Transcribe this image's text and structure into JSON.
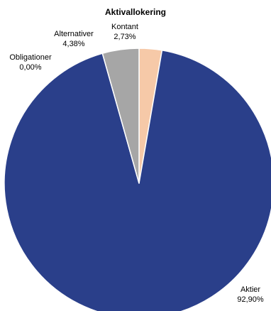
{
  "chart_data": {
    "type": "pie",
    "title": "Aktivallokering",
    "slices": [
      {
        "name": "Kontant",
        "value": 2.73,
        "label": "2,73%",
        "color": "#F6C9A8"
      },
      {
        "name": "Aktier",
        "value": 92.9,
        "label": "92,90%",
        "color": "#2A3F8A"
      },
      {
        "name": "Obligationer",
        "value": 0.0,
        "label": "0,00%",
        "color": "#7F7F7F"
      },
      {
        "name": "Alternativer",
        "value": 4.38,
        "label": "4,38%",
        "color": "#A6A6A6"
      }
    ],
    "start_angle": "12 o'clock",
    "direction": "clockwise",
    "legend": "none",
    "labels": "outside"
  }
}
